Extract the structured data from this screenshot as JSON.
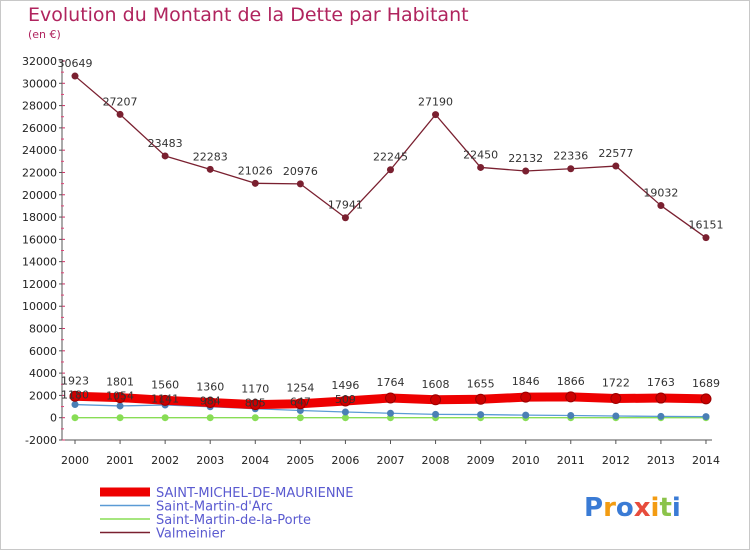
{
  "chart_data": {
    "type": "line",
    "title": "Evolution du Montant de la Dette par Habitant",
    "subtitle": "(en €)",
    "x": [
      "2000",
      "2001",
      "2002",
      "2003",
      "2004",
      "2005",
      "2006",
      "2007",
      "2008",
      "2009",
      "2010",
      "2011",
      "2012",
      "2013",
      "2014"
    ],
    "ylim": [
      -2000,
      32000
    ],
    "yticks": [
      -2000,
      0,
      2000,
      4000,
      6000,
      8000,
      10000,
      12000,
      14000,
      16000,
      18000,
      20000,
      22000,
      24000,
      26000,
      28000,
      30000,
      32000
    ],
    "grid": false,
    "legend_position": "bottom-left",
    "series": [
      {
        "name": "SAINT-MICHEL-DE-MAURIENNE",
        "color": "#ee0000",
        "values": [
          1923,
          1801,
          1560,
          1360,
          1170,
          1254,
          1496,
          1764,
          1608,
          1655,
          1846,
          1866,
          1722,
          1763,
          1689
        ],
        "labels": [
          "1923",
          "1801",
          "1560",
          "1360",
          "1170",
          "1254",
          "1496",
          "1764",
          "1608",
          "1655",
          "1846",
          "1866",
          "1722",
          "1763",
          "1689"
        ]
      },
      {
        "name": "Saint-Martin-d'Arc",
        "color": "#5b9bd5",
        "values": [
          1180,
          1054,
          1141,
          984,
          805,
          647,
          509,
          400,
          300,
          280,
          230,
          200,
          150,
          120,
          100
        ],
        "labels": [
          "1180",
          "1054",
          "1141",
          "984",
          "805",
          "647",
          "509",
          "",
          "",
          "",
          "",
          "",
          "",
          "",
          ""
        ]
      },
      {
        "name": "Saint-Martin-de-la-Porte",
        "color": "#88dd55",
        "values": [
          0,
          0,
          0,
          0,
          0,
          0,
          0,
          0,
          0,
          0,
          0,
          0,
          0,
          0,
          0
        ],
        "labels": []
      },
      {
        "name": "Valmeinier",
        "color": "#7a2030",
        "values": [
          30649,
          27207,
          23483,
          22283,
          21026,
          20976,
          17941,
          22245,
          27190,
          22450,
          22132,
          22336,
          22577,
          19032,
          16151
        ],
        "labels": [
          "30649",
          "27207",
          "23483",
          "22283",
          "21026",
          "20976",
          "17941",
          "22245",
          "27190",
          "22450",
          "22132",
          "22336",
          "22577",
          "19032",
          "16151"
        ]
      }
    ]
  },
  "logo": {
    "text": "Proxiti"
  }
}
